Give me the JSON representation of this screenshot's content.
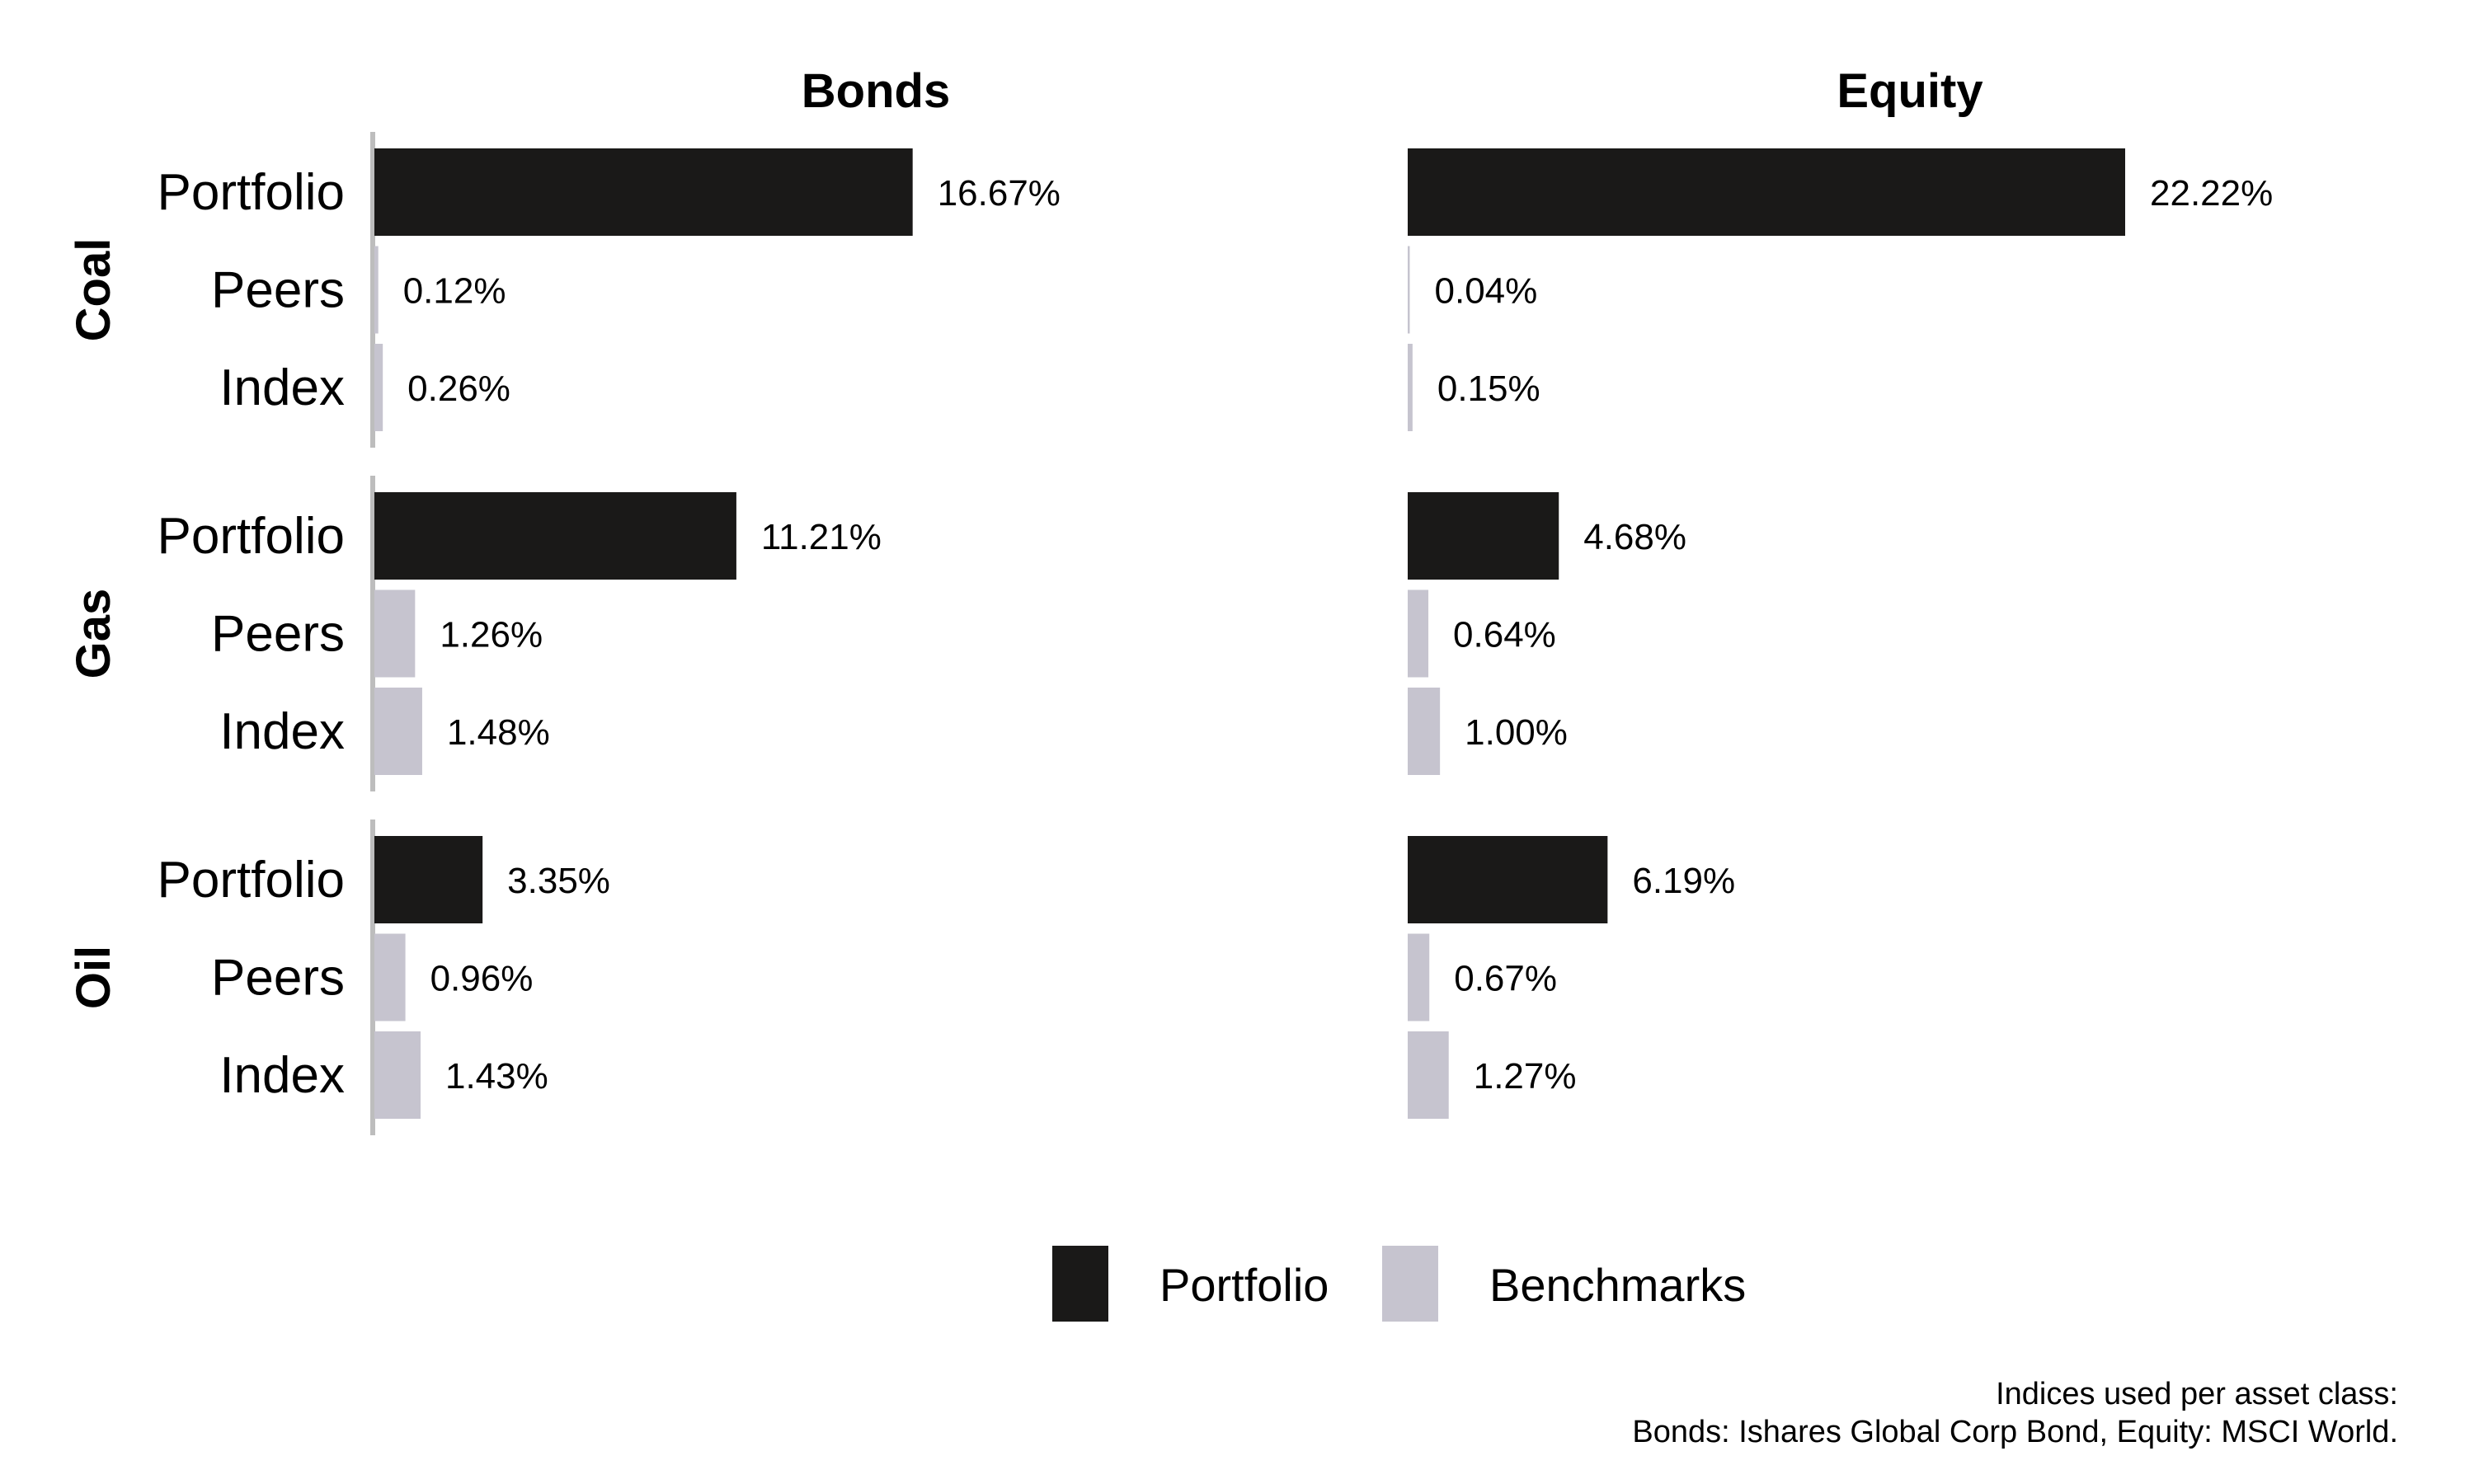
{
  "chart_data": {
    "type": "bar",
    "orientation": "horizontal",
    "panels": [
      "Bonds",
      "Equity"
    ],
    "groups": [
      "Coal",
      "Gas",
      "Oil"
    ],
    "categories": [
      "Portfolio",
      "Peers",
      "Index"
    ],
    "value_format": "percent_2dp",
    "data": {
      "Bonds": {
        "Coal": [
          16.67,
          0.12,
          0.26
        ],
        "Gas": [
          11.21,
          1.26,
          1.48
        ],
        "Oil": [
          3.35,
          0.96,
          1.43
        ]
      },
      "Equity": {
        "Coal": [
          22.22,
          0.04,
          0.15
        ],
        "Gas": [
          4.68,
          0.64,
          1.0
        ],
        "Oil": [
          6.19,
          0.67,
          1.27
        ]
      }
    },
    "legend": {
      "position": "bottom",
      "entries": [
        {
          "name": "Portfolio",
          "color": "#1a1918"
        },
        {
          "name": "Benchmarks",
          "color": "#c6c4cf"
        }
      ]
    },
    "colors": {
      "portfolio": "#1a1918",
      "benchmark": "#c6c4cf",
      "axis": "#bdbdbd"
    },
    "grid": false
  },
  "caption": {
    "line1": "Indices used per asset class:",
    "line2": "Bonds: Ishares Global Corp Bond, Equity: MSCI World."
  }
}
